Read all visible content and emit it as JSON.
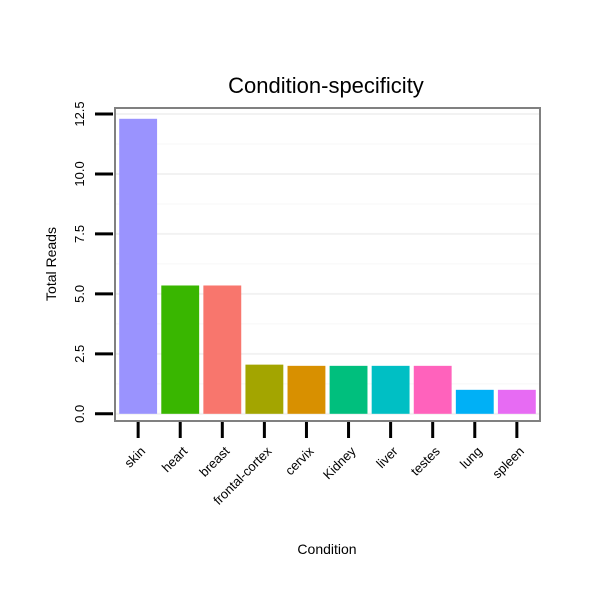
{
  "chart_data": {
    "type": "bar",
    "title": "Condition-specificity",
    "xlabel": "Condition",
    "ylabel": "Total Reads",
    "categories": [
      "skin",
      "heart",
      "breast",
      "frontal-cortex",
      "cervix",
      "Kidney",
      "liver",
      "testes",
      "lung",
      "spleen"
    ],
    "values": [
      12.3,
      5.35,
      5.35,
      2.05,
      2.0,
      2.0,
      2.0,
      2.0,
      1.0,
      1.0
    ],
    "colors": [
      "#9a93fe",
      "#39b600",
      "#f8766d",
      "#a3a500",
      "#d89000",
      "#00bf7d",
      "#00bfc4",
      "#ff62bc",
      "#00b0f6",
      "#e76bf3"
    ],
    "ylim": [
      -0.3,
      12.75
    ],
    "yticks": [
      0.0,
      2.5,
      5.0,
      7.5,
      10.0,
      12.5
    ],
    "ytick_labels": [
      "0.0",
      "2.5",
      "5.0",
      "7.5",
      "10.0",
      "12.5"
    ],
    "grid": true,
    "legend": "none"
  }
}
